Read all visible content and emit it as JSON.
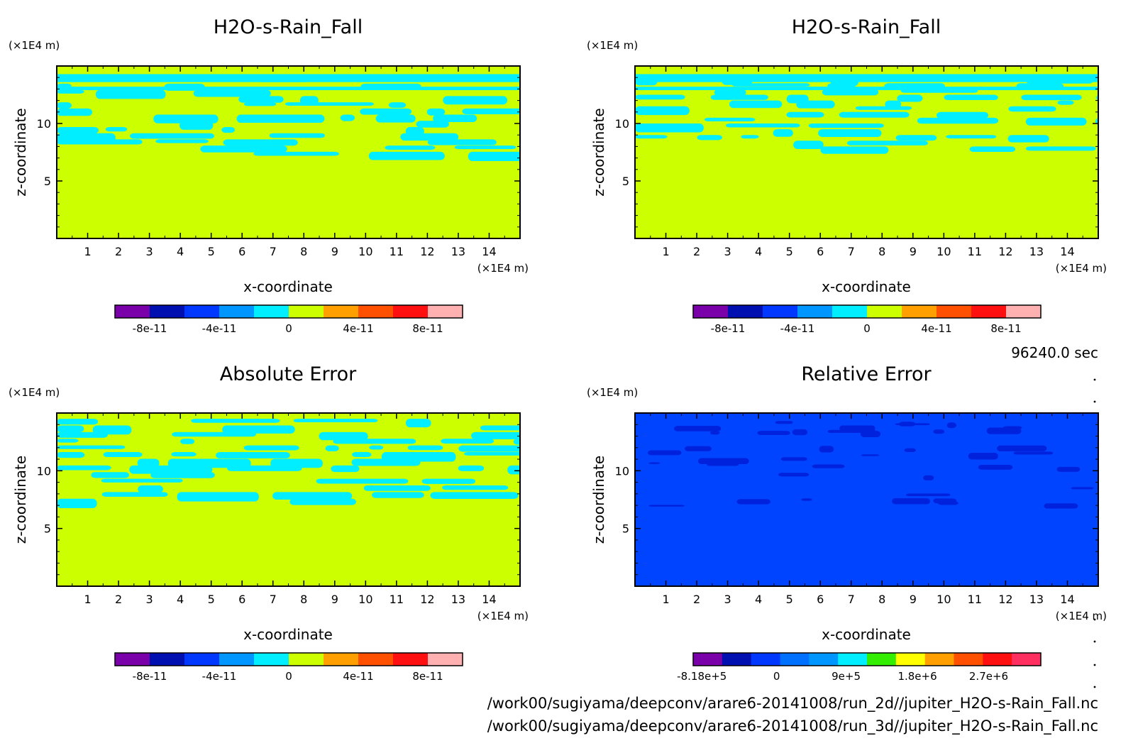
{
  "time_label": "96240.0 sec",
  "file_paths": [
    "/work00/sugiyama/deepconv/arare6-20141008/run_2d//jupiter_H2O-s-Rain_Fall.nc",
    "/work00/sugiyama/deepconv/arare6-20141008/run_3d//jupiter_H2O-s-Rain_Fall.nc"
  ],
  "colors": {
    "field_low": "#ccff00",
    "field_high": "#00eeff",
    "rel_base": "#0044ff",
    "rel_dark": "#0022dd"
  },
  "colorbar_palettes": {
    "field": [
      "#7a00aa",
      "#0010b0",
      "#0038ff",
      "#0096ff",
      "#00eeff",
      "#ccff00",
      "#ffa000",
      "#ff5000",
      "#ff1010",
      "#ffb0b0"
    ],
    "relative": [
      "#7a00aa",
      "#0010b0",
      "#0038ff",
      "#0070ff",
      "#0096ff",
      "#00eeff",
      "#33ee00",
      "#ffff00",
      "#ffa000",
      "#ff5000",
      "#ff1010",
      "#ff3060"
    ]
  },
  "chart_data": [
    {
      "type": "heatmap",
      "title": "H2O-s-Rain_Fall",
      "xlabel": "x-coordinate",
      "ylabel": "z-coordinate",
      "x_unit": "(×1E4 m)",
      "y_unit": "(×1E4 m)",
      "xlim": [
        0,
        15
      ],
      "ylim": [
        0,
        15
      ],
      "x_ticks": [
        "1",
        "2",
        "3",
        "4",
        "5",
        "6",
        "7",
        "8",
        "9",
        "10",
        "11",
        "12",
        "13",
        "14"
      ],
      "y_ticks": [
        "5",
        "10"
      ],
      "colorbar_labels": [
        "-8e-11",
        "-4e-11",
        "0",
        "4e-11",
        "8e-11"
      ],
      "field": "2d",
      "regions": [
        {
          "z_range": [
            7,
            14
          ],
          "value_band": "0 to 2e-11 with patches of -2e-11 to 0"
        },
        {
          "z_range": [
            0,
            7
          ],
          "value_band": "0 to 2e-11"
        }
      ]
    },
    {
      "type": "heatmap",
      "title": "H2O-s-Rain_Fall",
      "xlabel": "x-coordinate",
      "ylabel": "z-coordinate",
      "x_unit": "(×1E4 m)",
      "y_unit": "(×1E4 m)",
      "xlim": [
        0,
        15
      ],
      "ylim": [
        0,
        15
      ],
      "x_ticks": [
        "1",
        "2",
        "3",
        "4",
        "5",
        "6",
        "7",
        "8",
        "9",
        "10",
        "11",
        "12",
        "13",
        "14"
      ],
      "y_ticks": [
        "5",
        "10"
      ],
      "colorbar_labels": [
        "-8e-11",
        "-4e-11",
        "0",
        "4e-11",
        "8e-11"
      ],
      "field": "3d",
      "regions": [
        {
          "z_range": [
            7.5,
            14
          ],
          "value_band": "0 to 2e-11 with patches of -2e-11 to 0"
        },
        {
          "z_range": [
            0,
            7.5
          ],
          "value_band": "0 to 2e-11"
        }
      ]
    },
    {
      "type": "heatmap",
      "title": "Absolute Error",
      "xlabel": "x-coordinate",
      "ylabel": "z-coordinate",
      "x_unit": "(×1E4 m)",
      "y_unit": "(×1E4 m)",
      "xlim": [
        0,
        15
      ],
      "ylim": [
        0,
        15
      ],
      "x_ticks": [
        "1",
        "2",
        "3",
        "4",
        "5",
        "6",
        "7",
        "8",
        "9",
        "10",
        "11",
        "12",
        "13",
        "14"
      ],
      "y_ticks": [
        "5",
        "10"
      ],
      "colorbar_labels": [
        "-8e-11",
        "-4e-11",
        "0",
        "4e-11",
        "8e-11"
      ],
      "field": "abs",
      "regions": [
        {
          "z_range": [
            7,
            14.5
          ],
          "value_band": "0 to 2e-11 with patches of -2e-11 to 0"
        },
        {
          "z_range": [
            0,
            7
          ],
          "value_band": "0 to 2e-11"
        }
      ]
    },
    {
      "type": "heatmap",
      "title": "Relative Error",
      "xlabel": "x-coordinate",
      "ylabel": "z-coordinate",
      "x_unit": "(×1E4 m)",
      "y_unit": "(×1E4 m)",
      "xlim": [
        0,
        15
      ],
      "ylim": [
        0,
        15
      ],
      "x_ticks": [
        "1",
        "2",
        "3",
        "4",
        "5",
        "6",
        "7",
        "8",
        "9",
        "10",
        "11",
        "12",
        "13",
        "14"
      ],
      "y_ticks": [
        "5",
        "10"
      ],
      "colorbar_labels": [
        "-8.18e+5",
        "0",
        "9e+5",
        "1.8e+6",
        "2.7e+6"
      ],
      "field": "rel",
      "regions": [
        {
          "z_range": [
            0,
            15
          ],
          "value_band": "-3e+5 to 0 with darker patches near -5e+5 above z=7"
        }
      ]
    }
  ]
}
